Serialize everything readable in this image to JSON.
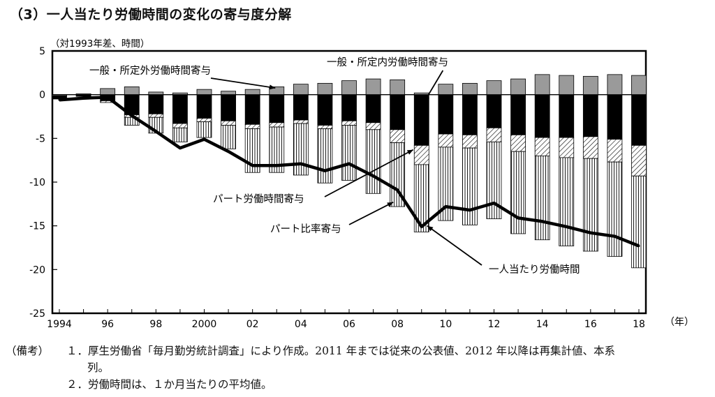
{
  "title": "（3）一人当たり労働時間の変化の寄与度分解",
  "chart_data": {
    "type": "bar",
    "title": "（3）一人当たり労働時間の変化の寄与度分解",
    "ylabel": "（対1993年差、時間）",
    "xunit": "（年）",
    "ylim": [
      -25,
      5
    ],
    "yticks": [
      5,
      0,
      -5,
      -10,
      -15,
      -20,
      -25
    ],
    "x": [
      1994,
      1995,
      1996,
      1997,
      1998,
      1999,
      2000,
      2001,
      2002,
      2003,
      2004,
      2005,
      2006,
      2007,
      2008,
      2009,
      2010,
      2011,
      2012,
      2013,
      2014,
      2015,
      2016,
      2017,
      2018
    ],
    "xtick_labels": {
      "1994": "1994",
      "1996": "96",
      "1998": "98",
      "2000": "2000",
      "2002": "02",
      "2004": "04",
      "2006": "06",
      "2008": "08",
      "2010": "10",
      "2012": "12",
      "2014": "14",
      "2016": "16",
      "2018": "18"
    },
    "grid": false,
    "series": [
      {
        "name": "一般・所定外労働時間寄与",
        "type": "bar",
        "color": "#9a9a9a",
        "values": [
          -0.1,
          0.1,
          0.7,
          0.9,
          0.3,
          0.2,
          0.6,
          0.4,
          0.6,
          0.9,
          1.2,
          1.3,
          1.6,
          1.8,
          1.7,
          0.2,
          1.2,
          1.3,
          1.6,
          1.8,
          2.3,
          2.2,
          2.1,
          2.3,
          2.2
        ]
      },
      {
        "name": "一般・所定内労働時間寄与",
        "type": "bar",
        "color": "#000000",
        "values": [
          -0.4,
          -0.2,
          -0.7,
          -2.3,
          -2.2,
          -3.3,
          -2.7,
          -3.0,
          -3.4,
          -3.2,
          -2.9,
          -3.5,
          -3.0,
          -3.2,
          -4.0,
          -5.8,
          -4.5,
          -4.6,
          -3.8,
          -4.6,
          -4.9,
          -4.9,
          -4.8,
          -5.1,
          -5.8
        ]
      },
      {
        "name": "パート労働時間寄与",
        "type": "bar",
        "color": "#ffffff",
        "values": [
          0,
          0,
          -0.2,
          -0.3,
          -0.4,
          -0.5,
          -0.4,
          -0.5,
          -0.5,
          -0.5,
          -0.4,
          -0.4,
          -0.5,
          -0.8,
          -1.5,
          -2.2,
          -1.5,
          -1.5,
          -1.6,
          -1.9,
          -2.1,
          -2.3,
          -2.5,
          -2.6,
          -3.5
        ]
      },
      {
        "name": "パート比率寄与",
        "type": "bar",
        "color": "#ffffff",
        "values": [
          0,
          0,
          0,
          -0.9,
          -1.8,
          -1.6,
          -1.8,
          -2.7,
          -5.0,
          -5.2,
          -5.9,
          -6.2,
          -6.3,
          -7.3,
          -7.3,
          -7.7,
          -8.4,
          -8.8,
          -8.8,
          -9.4,
          -9.6,
          -10.1,
          -10.6,
          -10.8,
          -10.5
        ]
      },
      {
        "name": "一人当たり労働時間",
        "type": "line",
        "color": "#000000",
        "values": [
          -0.6,
          -0.4,
          -0.3,
          -2.4,
          -4.2,
          -6.1,
          -5.1,
          -6.5,
          -8.1,
          -8.1,
          -7.9,
          -8.7,
          -7.9,
          -9.3,
          -10.9,
          -15.1,
          -12.8,
          -13.2,
          -12.4,
          -14.1,
          -14.5,
          -15.1,
          -15.8,
          -16.2,
          -17.3
        ]
      }
    ],
    "annotations": [
      "一般・所定外労働時間寄与",
      "一般・所定内労働時間寄与",
      "パート労働時間寄与",
      "パート比率寄与",
      "一人当たり労働時間"
    ]
  },
  "notes": [
    {
      "label": "（備考）",
      "num": "１．",
      "text": "厚生労働省「毎月勤労統計調査」により作成。2011 年までは従来の公表値、2012 年以降は再集計値、本系"
    },
    {
      "label": "",
      "num": "",
      "text": "列。"
    },
    {
      "label": "",
      "num": "２．",
      "text": "労働時間は、１か月当たりの平均値。"
    }
  ]
}
